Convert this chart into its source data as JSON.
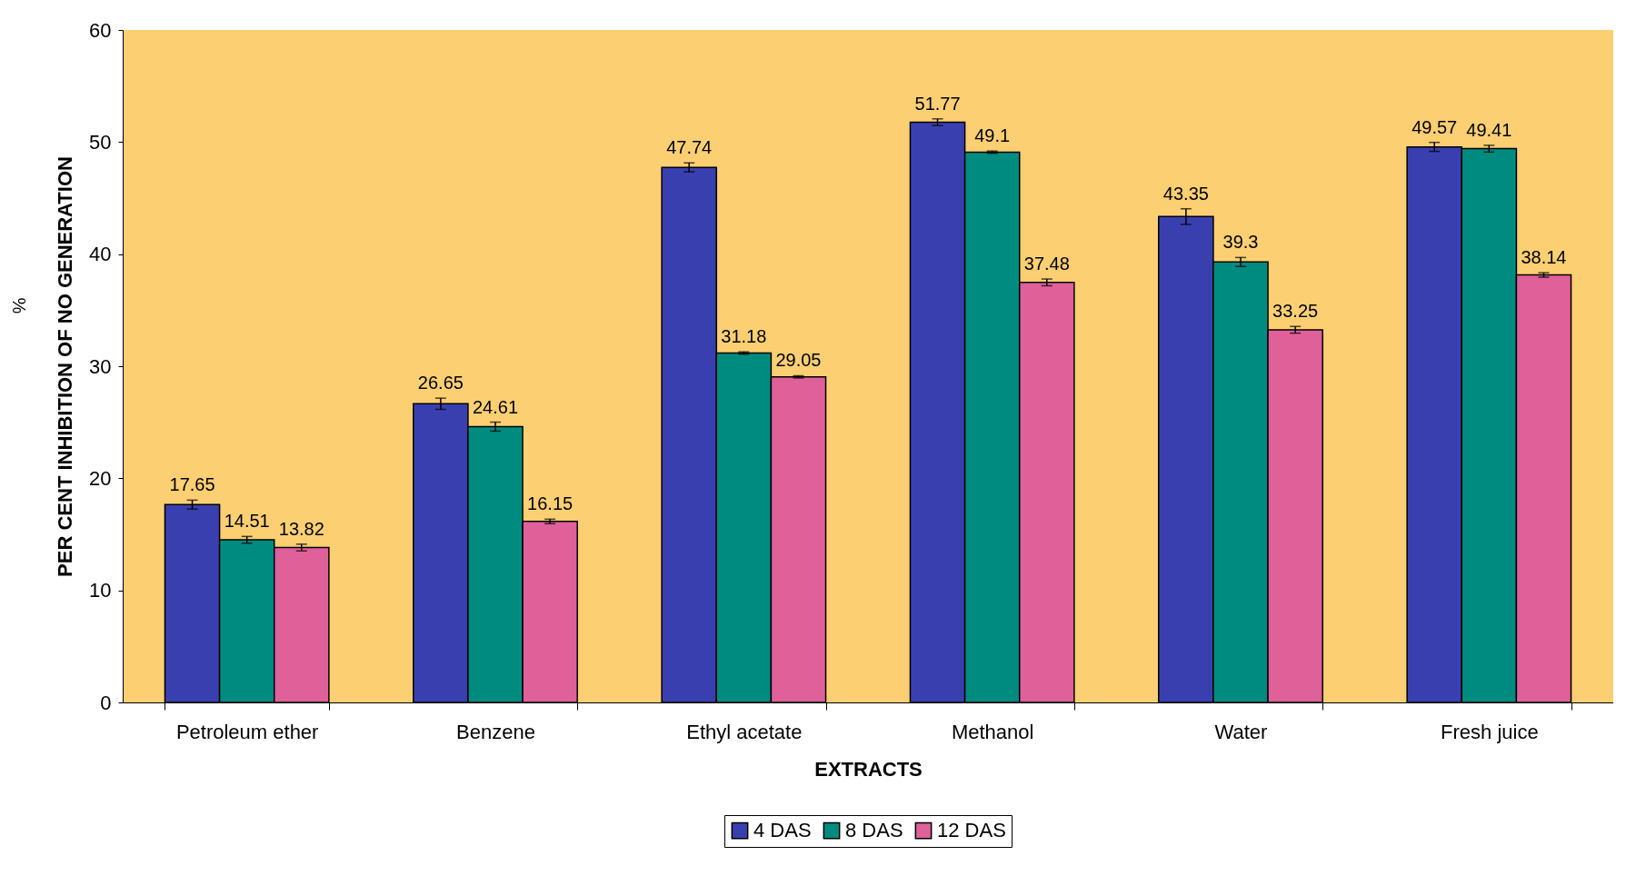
{
  "chart_data": {
    "type": "bar",
    "xlabel": "EXTRACTS",
    "ylabel": "PER CENT INHIBITION OF NO GENERATION",
    "annotations": [
      "%"
    ],
    "categories": [
      "Petroleum ether",
      "Benzene",
      "Ethyl acetate",
      "Methanol",
      "Water",
      "Fresh juice"
    ],
    "series": [
      {
        "name": "4 DAS",
        "color": "#3a3fb0",
        "values": [
          17.65,
          26.65,
          47.74,
          51.77,
          43.35,
          49.57
        ],
        "errors": [
          0.4,
          0.5,
          0.4,
          0.3,
          0.7,
          0.4
        ]
      },
      {
        "name": "8 DAS",
        "color": "#008b80",
        "values": [
          14.51,
          24.61,
          31.18,
          49.1,
          39.3,
          49.41
        ],
        "errors": [
          0.3,
          0.4,
          0.1,
          0.1,
          0.4,
          0.3
        ]
      },
      {
        "name": "12 DAS",
        "color": "#e0609a",
        "values": [
          13.82,
          16.15,
          29.05,
          37.48,
          33.25,
          38.14
        ],
        "errors": [
          0.3,
          0.2,
          0.1,
          0.3,
          0.3,
          0.2
        ]
      }
    ],
    "ylim": [
      0,
      60
    ],
    "yticks": [
      0,
      10,
      20,
      30,
      40,
      50,
      60
    ],
    "grid": false,
    "legend": "bottom",
    "data_labels": true
  }
}
